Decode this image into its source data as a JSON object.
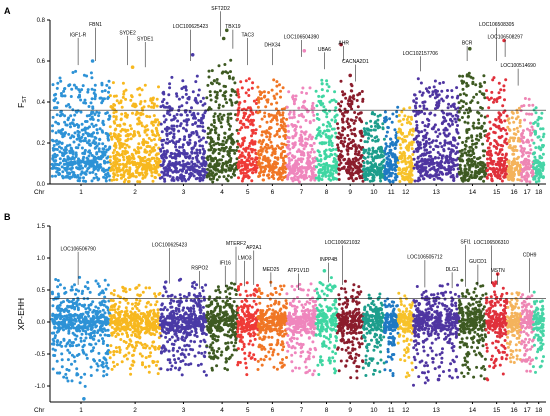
{
  "chart_data": [
    {
      "type": "scatter",
      "subtype": "manhattan",
      "panel_label": "A",
      "ylabel_main": "F",
      "ylabel_sub": "ST",
      "xlabel": "Chr",
      "ylim": [
        0,
        0.8
      ],
      "yticks": [
        "0.0",
        "0.2",
        "0.4",
        "0.6",
        "0.8"
      ],
      "ytick_values": [
        0,
        0.2,
        0.4,
        0.6,
        0.8
      ],
      "threshold": 0.36,
      "chromosomes": [
        "1",
        "2",
        "3",
        "4",
        "5",
        "6",
        "7",
        "8",
        "9",
        "10",
        "11",
        "12",
        "13",
        "14",
        "15",
        "16",
        "17",
        "18"
      ],
      "chromosome_colors": [
        "#2d92d6",
        "#f7b81f",
        "#4a3aa6",
        "#3e5a22",
        "#ef3a37",
        "#f07625",
        "#ef86bd",
        "#3fd6a2",
        "#8b1d2c",
        "#1d9e8c",
        "#1f79c3",
        "#f7c22a",
        "#4f35a1",
        "#3e5a22",
        "#e0303b",
        "#f4b35c",
        "#ee86b4",
        "#46d4a6"
      ],
      "chromosome_widths": [
        60,
        52,
        48,
        32,
        21,
        30,
        30,
        22,
        27,
        22,
        14,
        16,
        47,
        28,
        22,
        14,
        13,
        11
      ],
      "noise_base": [
        0.1,
        0.1,
        0.09,
        0.09,
        0.1,
        0.1,
        0.09,
        0.09,
        0.1,
        0.07,
        0.08,
        0.07,
        0.09,
        0.09,
        0.1,
        0.08,
        0.08,
        0.08
      ],
      "noise_top": [
        0.55,
        0.5,
        0.52,
        0.6,
        0.52,
        0.52,
        0.48,
        0.55,
        0.5,
        0.36,
        0.38,
        0.38,
        0.52,
        0.56,
        0.52,
        0.4,
        0.45,
        0.4
      ],
      "highlight_points": [
        {
          "chr": "1",
          "pos": 0.7,
          "value": 0.6
        },
        {
          "chr": "2",
          "pos": 0.45,
          "value": 0.57
        },
        {
          "chr": "3",
          "pos": 0.7,
          "value": 0.63
        },
        {
          "chr": "4",
          "pos": 0.55,
          "value": 0.71
        },
        {
          "chr": "4",
          "pos": 0.65,
          "value": 0.75
        },
        {
          "chr": "7",
          "pos": 0.6,
          "value": 0.65
        },
        {
          "chr": "9",
          "pos": 0.15,
          "value": 0.68
        },
        {
          "chr": "9",
          "pos": 0.5,
          "value": 0.53
        },
        {
          "chr": "14",
          "pos": 0.4,
          "value": 0.66
        },
        {
          "chr": "15",
          "pos": 0.85,
          "value": 0.7
        }
      ],
      "annotations": [
        {
          "label": "IGF1-R",
          "chr": "1",
          "pos": 0.45,
          "text_y": 0.72,
          "point_y": 0.58
        },
        {
          "label": "FBN1",
          "chr": "1",
          "pos": 0.75,
          "text_y": 0.77,
          "point_y": 0.6
        },
        {
          "label": "SYDE2",
          "chr": "2",
          "pos": 0.35,
          "text_y": 0.73,
          "point_y": 0.58
        },
        {
          "label": "SYDE1",
          "chr": "2",
          "pos": 0.7,
          "text_y": 0.7,
          "point_y": 0.57
        },
        {
          "label": "LOC100625423",
          "chr": "3",
          "pos": 0.65,
          "text_y": 0.76,
          "point_y": 0.6
        },
        {
          "label": "SFT2D2",
          "chr": "4",
          "pos": 0.45,
          "text_y": 0.85,
          "point_y": 0.72
        },
        {
          "label": "TBX19",
          "chr": "4",
          "pos": 0.85,
          "text_y": 0.76,
          "point_y": 0.66
        },
        {
          "label": "TAC3",
          "chr": "5",
          "pos": 0.5,
          "text_y": 0.72,
          "point_y": 0.58
        },
        {
          "label": "DHX34",
          "chr": "6",
          "pos": 0.5,
          "text_y": 0.67,
          "point_y": 0.58
        },
        {
          "label": "LOC106504390",
          "chr": "7",
          "pos": 0.5,
          "text_y": 0.71,
          "point_y": 0.62
        },
        {
          "label": "UBA6",
          "chr": "8",
          "pos": 0.4,
          "text_y": 0.65,
          "point_y": 0.56
        },
        {
          "label": "AHR",
          "chr": "9",
          "pos": 0.25,
          "text_y": 0.68,
          "point_y": 0.6
        },
        {
          "label": "CACNA2D1",
          "chr": "9",
          "pos": 0.7,
          "text_y": 0.59,
          "point_y": 0.5
        },
        {
          "label": "LOC102157706",
          "chr": "13",
          "pos": 0.15,
          "text_y": 0.63,
          "point_y": 0.55
        },
        {
          "label": "BCR",
          "chr": "14",
          "pos": 0.3,
          "text_y": 0.68,
          "point_y": 0.6
        },
        {
          "label": "LOC106508305",
          "chr": "15",
          "pos": 0.5,
          "text_y": 0.77,
          "point_y": 0.6
        },
        {
          "label": "LOC106508297",
          "chr": "15",
          "pos": 0.9,
          "text_y": 0.71,
          "point_y": 0.62
        },
        {
          "label": "LOC100514690",
          "chr": "16",
          "pos": 0.8,
          "text_y": 0.57,
          "point_y": 0.48
        }
      ]
    },
    {
      "type": "scatter",
      "subtype": "manhattan",
      "panel_label": "B",
      "ylabel_main": "XP-EHH",
      "xlabel": "Chr",
      "ylim": [
        -1.25,
        1.5
      ],
      "yticks": [
        "-1.0",
        "-0.5",
        "0.0",
        "0.5",
        "1.0",
        "1.5"
      ],
      "ytick_values": [
        -1.0,
        -0.5,
        0.0,
        0.5,
        1.0,
        1.5
      ],
      "threshold": 0.37,
      "chromosomes": [
        "1",
        "2",
        "3",
        "4",
        "5",
        "6",
        "7",
        "8",
        "9",
        "10",
        "11",
        "12",
        "13",
        "14",
        "15",
        "16",
        "17",
        "18"
      ],
      "chromosome_colors": [
        "#2d92d6",
        "#f7b81f",
        "#4a3aa6",
        "#3e5a22",
        "#ef3a37",
        "#f07625",
        "#ef86bd",
        "#3fd6a2",
        "#8b1d2c",
        "#1d9e8c",
        "#1f79c3",
        "#f7c22a",
        "#4f35a1",
        "#3e5a22",
        "#e0303b",
        "#f4b35c",
        "#ee86b4",
        "#46d4a6"
      ],
      "chromosome_widths": [
        60,
        52,
        48,
        32,
        21,
        30,
        30,
        22,
        27,
        22,
        14,
        16,
        47,
        28,
        22,
        14,
        13,
        11
      ],
      "noise_low": [
        -0.9,
        -0.75,
        -0.8,
        -0.75,
        -0.75,
        -0.8,
        -0.8,
        -0.75,
        -0.85,
        -0.85,
        -0.85,
        -0.9,
        -0.95,
        -0.8,
        -0.8,
        -0.75,
        -0.8,
        -0.75
      ],
      "noise_high": [
        0.6,
        0.5,
        0.6,
        0.55,
        0.55,
        0.55,
        0.5,
        0.65,
        0.55,
        0.35,
        0.4,
        0.35,
        0.55,
        0.55,
        0.6,
        0.45,
        0.5,
        0.45
      ],
      "highlight_points": [
        {
          "chr": "1",
          "pos": 0.55,
          "value": -1.2
        },
        {
          "chr": "8",
          "pos": 0.4,
          "value": 0.8
        },
        {
          "chr": "13",
          "pos": 0.55,
          "value": -0.9
        },
        {
          "chr": "15",
          "pos": 0.55,
          "value": 0.75
        }
      ],
      "annotations": [
        {
          "label": "LOC106506790",
          "chr": "1",
          "pos": 0.45,
          "text_y": 1.12,
          "point_y": 0.58
        },
        {
          "label": "LOC100625423",
          "chr": "3",
          "pos": 0.2,
          "text_y": 1.18,
          "point_y": 0.6
        },
        {
          "label": "RSPO2",
          "chr": "3",
          "pos": 0.85,
          "text_y": 0.82,
          "point_y": 0.52
        },
        {
          "label": "IFI16",
          "chr": "4",
          "pos": 0.6,
          "text_y": 0.9,
          "point_y": 0.55
        },
        {
          "label": "MTERF2",
          "chr": "4",
          "pos": 0.95,
          "text_y": 1.2,
          "point_y": 0.58
        },
        {
          "label": "LMO3",
          "chr": "5",
          "pos": 0.35,
          "text_y": 0.98,
          "point_y": 0.56
        },
        {
          "label": "AP2A1",
          "chr": "5",
          "pos": 0.8,
          "text_y": 1.14,
          "point_y": 0.58
        },
        {
          "label": "MED25",
          "chr": "6",
          "pos": 0.45,
          "text_y": 0.8,
          "point_y": 0.55
        },
        {
          "label": "ATP1V1D",
          "chr": "7",
          "pos": 0.4,
          "text_y": 0.78,
          "point_y": 0.5
        },
        {
          "label": "INPP4B",
          "chr": "8",
          "pos": 0.6,
          "text_y": 0.95,
          "point_y": 0.62
        },
        {
          "label": "LOC100621032",
          "chr": "9",
          "pos": 0.2,
          "text_y": 1.22,
          "point_y": 0.58
        },
        {
          "label": "LOC106505712",
          "chr": "13",
          "pos": 0.25,
          "text_y": 0.99,
          "point_y": 0.54
        },
        {
          "label": "DLG1",
          "chr": "13",
          "pos": 0.85,
          "text_y": 0.8,
          "point_y": 0.53
        },
        {
          "label": "SFI1",
          "chr": "14",
          "pos": 0.25,
          "text_y": 1.23,
          "point_y": 0.55
        },
        {
          "label": "GUCD1",
          "chr": "14",
          "pos": 0.7,
          "text_y": 0.92,
          "point_y": 0.56
        },
        {
          "label": "LOC106506310",
          "chr": "15",
          "pos": 0.25,
          "text_y": 1.22,
          "point_y": 0.6
        },
        {
          "label": "MSTN",
          "chr": "15",
          "pos": 0.55,
          "text_y": 0.78,
          "point_y": 0.58
        },
        {
          "label": "CDH9",
          "chr": "17",
          "pos": 0.7,
          "text_y": 1.02,
          "point_y": 0.46
        }
      ]
    }
  ]
}
